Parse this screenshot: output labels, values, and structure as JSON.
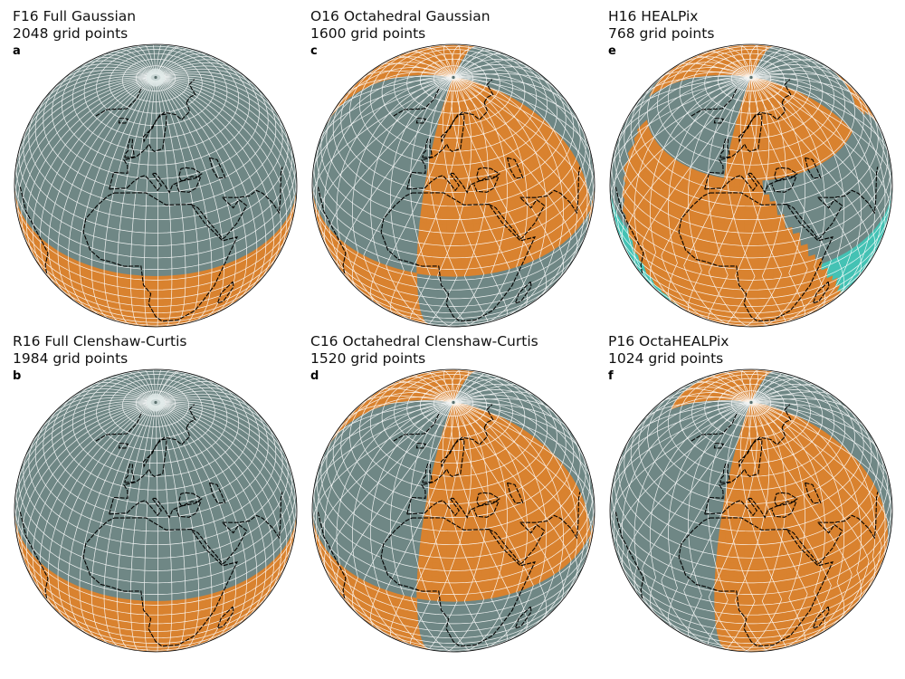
{
  "colors": {
    "grey": "#6f8785",
    "orange": "#d9822f",
    "teal": "#44c2b4",
    "grid": "#ffffff",
    "coast": "#000000"
  },
  "panels": [
    {
      "id": "a",
      "title": "F16 Full Gaussian",
      "subtitle": "2048 grid points",
      "letter": "a",
      "scheme": "full"
    },
    {
      "id": "c",
      "title": "O16 Octahedral Gaussian",
      "subtitle": "1600 grid points",
      "letter": "c",
      "scheme": "octa"
    },
    {
      "id": "e",
      "title": "H16 HEALPix",
      "subtitle": "768 grid points",
      "letter": "e",
      "scheme": "healpix"
    },
    {
      "id": "b",
      "title": "R16 Full Clenshaw-Curtis",
      "subtitle": "1984 grid points",
      "letter": "b",
      "scheme": "full"
    },
    {
      "id": "d",
      "title": "C16 Octahedral Clenshaw-Curtis",
      "subtitle": "1520 grid points",
      "letter": "d",
      "scheme": "octa"
    },
    {
      "id": "f",
      "title": "P16 OctaHEALPix",
      "subtitle": "1024 grid points",
      "letter": "f",
      "scheme": "octahealpix"
    }
  ]
}
